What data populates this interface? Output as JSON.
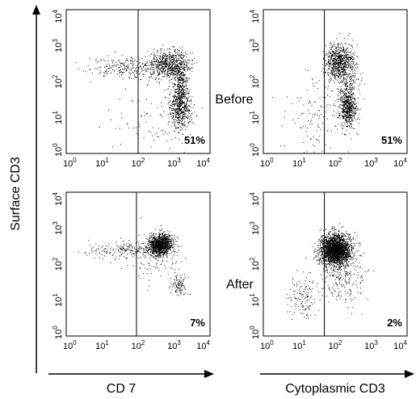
{
  "y_axis_label": "Surface CD3",
  "x_axis_labels": {
    "left": "CD 7",
    "right": "Cytoplasmic CD3"
  },
  "row_labels": {
    "top": "Before",
    "bottom": "After"
  },
  "colors": {
    "dots": "#000000",
    "axes": "#000000",
    "background": "#ffffff"
  },
  "chart_data": [
    {
      "type": "scatter",
      "panel": "before-cd7",
      "row": "Before",
      "xlabel": "CD 7",
      "ylabel": "Surface CD3",
      "x_scale": "log",
      "y_scale": "log",
      "xlim": [
        1,
        10000
      ],
      "ylim": [
        1,
        10000
      ],
      "x_ticks": [
        "10^0",
        "10^1",
        "10^2",
        "10^3",
        "10^4"
      ],
      "y_ticks": [
        "10^0",
        "10^1",
        "10^2",
        "10^3",
        "10^4"
      ],
      "gate_x": 100,
      "annotation": "51%",
      "populations": [
        {
          "cx": 700,
          "cy": 300,
          "sx": 0.3,
          "sy": 0.2,
          "n": 650
        },
        {
          "cx": 1500,
          "cy": 20,
          "sx": 0.15,
          "sy": 0.3,
          "n": 550
        },
        {
          "cx": 1500,
          "cy": 120,
          "sx": 0.1,
          "sy": 0.35,
          "n": 250
        },
        {
          "cx": 50,
          "cy": 250,
          "sx": 0.55,
          "sy": 0.15,
          "n": 250
        },
        {
          "cx": 200,
          "cy": 8,
          "sx": 0.6,
          "sy": 0.45,
          "n": 80
        }
      ]
    },
    {
      "type": "scatter",
      "panel": "before-cyto",
      "row": "Before",
      "xlabel": "Cytoplasmic CD3",
      "ylabel": "Surface CD3",
      "x_scale": "log",
      "y_scale": "log",
      "xlim": [
        1,
        10000
      ],
      "ylim": [
        1,
        10000
      ],
      "x_ticks": [
        "10^0",
        "10^1",
        "10^2",
        "10^3",
        "10^4"
      ],
      "y_ticks": [
        "10^0",
        "10^1",
        "10^2",
        "10^3",
        "10^4"
      ],
      "gate_x": 50,
      "annotation": "51%",
      "populations": [
        {
          "cx": 130,
          "cy": 350,
          "sx": 0.2,
          "sy": 0.25,
          "n": 700
        },
        {
          "cx": 220,
          "cy": 18,
          "sx": 0.12,
          "sy": 0.25,
          "n": 550
        },
        {
          "cx": 200,
          "cy": 100,
          "sx": 0.2,
          "sy": 0.4,
          "n": 200
        },
        {
          "cx": 25,
          "cy": 10,
          "sx": 0.45,
          "sy": 0.6,
          "n": 120
        }
      ]
    },
    {
      "type": "scatter",
      "panel": "after-cd7",
      "row": "After",
      "xlabel": "CD 7",
      "ylabel": "Surface CD3",
      "x_scale": "log",
      "y_scale": "log",
      "xlim": [
        1,
        10000
      ],
      "ylim": [
        1,
        10000
      ],
      "x_ticks": [
        "10^0",
        "10^1",
        "10^2",
        "10^3",
        "10^4"
      ],
      "y_ticks": [
        "10^0",
        "10^1",
        "10^2",
        "10^3",
        "10^4"
      ],
      "gate_x": 90,
      "annotation": "7%",
      "populations": [
        {
          "cx": 400,
          "cy": 350,
          "sx": 0.18,
          "sy": 0.15,
          "n": 1100
        },
        {
          "cx": 40,
          "cy": 250,
          "sx": 0.55,
          "sy": 0.12,
          "n": 200
        },
        {
          "cx": 1300,
          "cy": 25,
          "sx": 0.12,
          "sy": 0.15,
          "n": 100
        },
        {
          "cx": 300,
          "cy": 150,
          "sx": 0.35,
          "sy": 0.35,
          "n": 100
        }
      ]
    },
    {
      "type": "scatter",
      "panel": "after-cyto",
      "row": "After",
      "xlabel": "Cytoplasmic CD3",
      "ylabel": "Surface CD3",
      "x_scale": "log",
      "y_scale": "log",
      "xlim": [
        1,
        10000
      ],
      "ylim": [
        1,
        10000
      ],
      "x_ticks": [
        "10^0",
        "10^1",
        "10^2",
        "10^3",
        "10^4"
      ],
      "y_ticks": [
        "10^0",
        "10^1",
        "10^2",
        "10^3",
        "10^4"
      ],
      "gate_x": 50,
      "annotation": "2%",
      "populations": [
        {
          "cx": 100,
          "cy": 250,
          "sx": 0.22,
          "sy": 0.22,
          "n": 2300
        },
        {
          "cx": 12,
          "cy": 12,
          "sx": 0.2,
          "sy": 0.3,
          "n": 130
        },
        {
          "cx": 150,
          "cy": 40,
          "sx": 0.35,
          "sy": 0.35,
          "n": 200
        }
      ]
    }
  ]
}
